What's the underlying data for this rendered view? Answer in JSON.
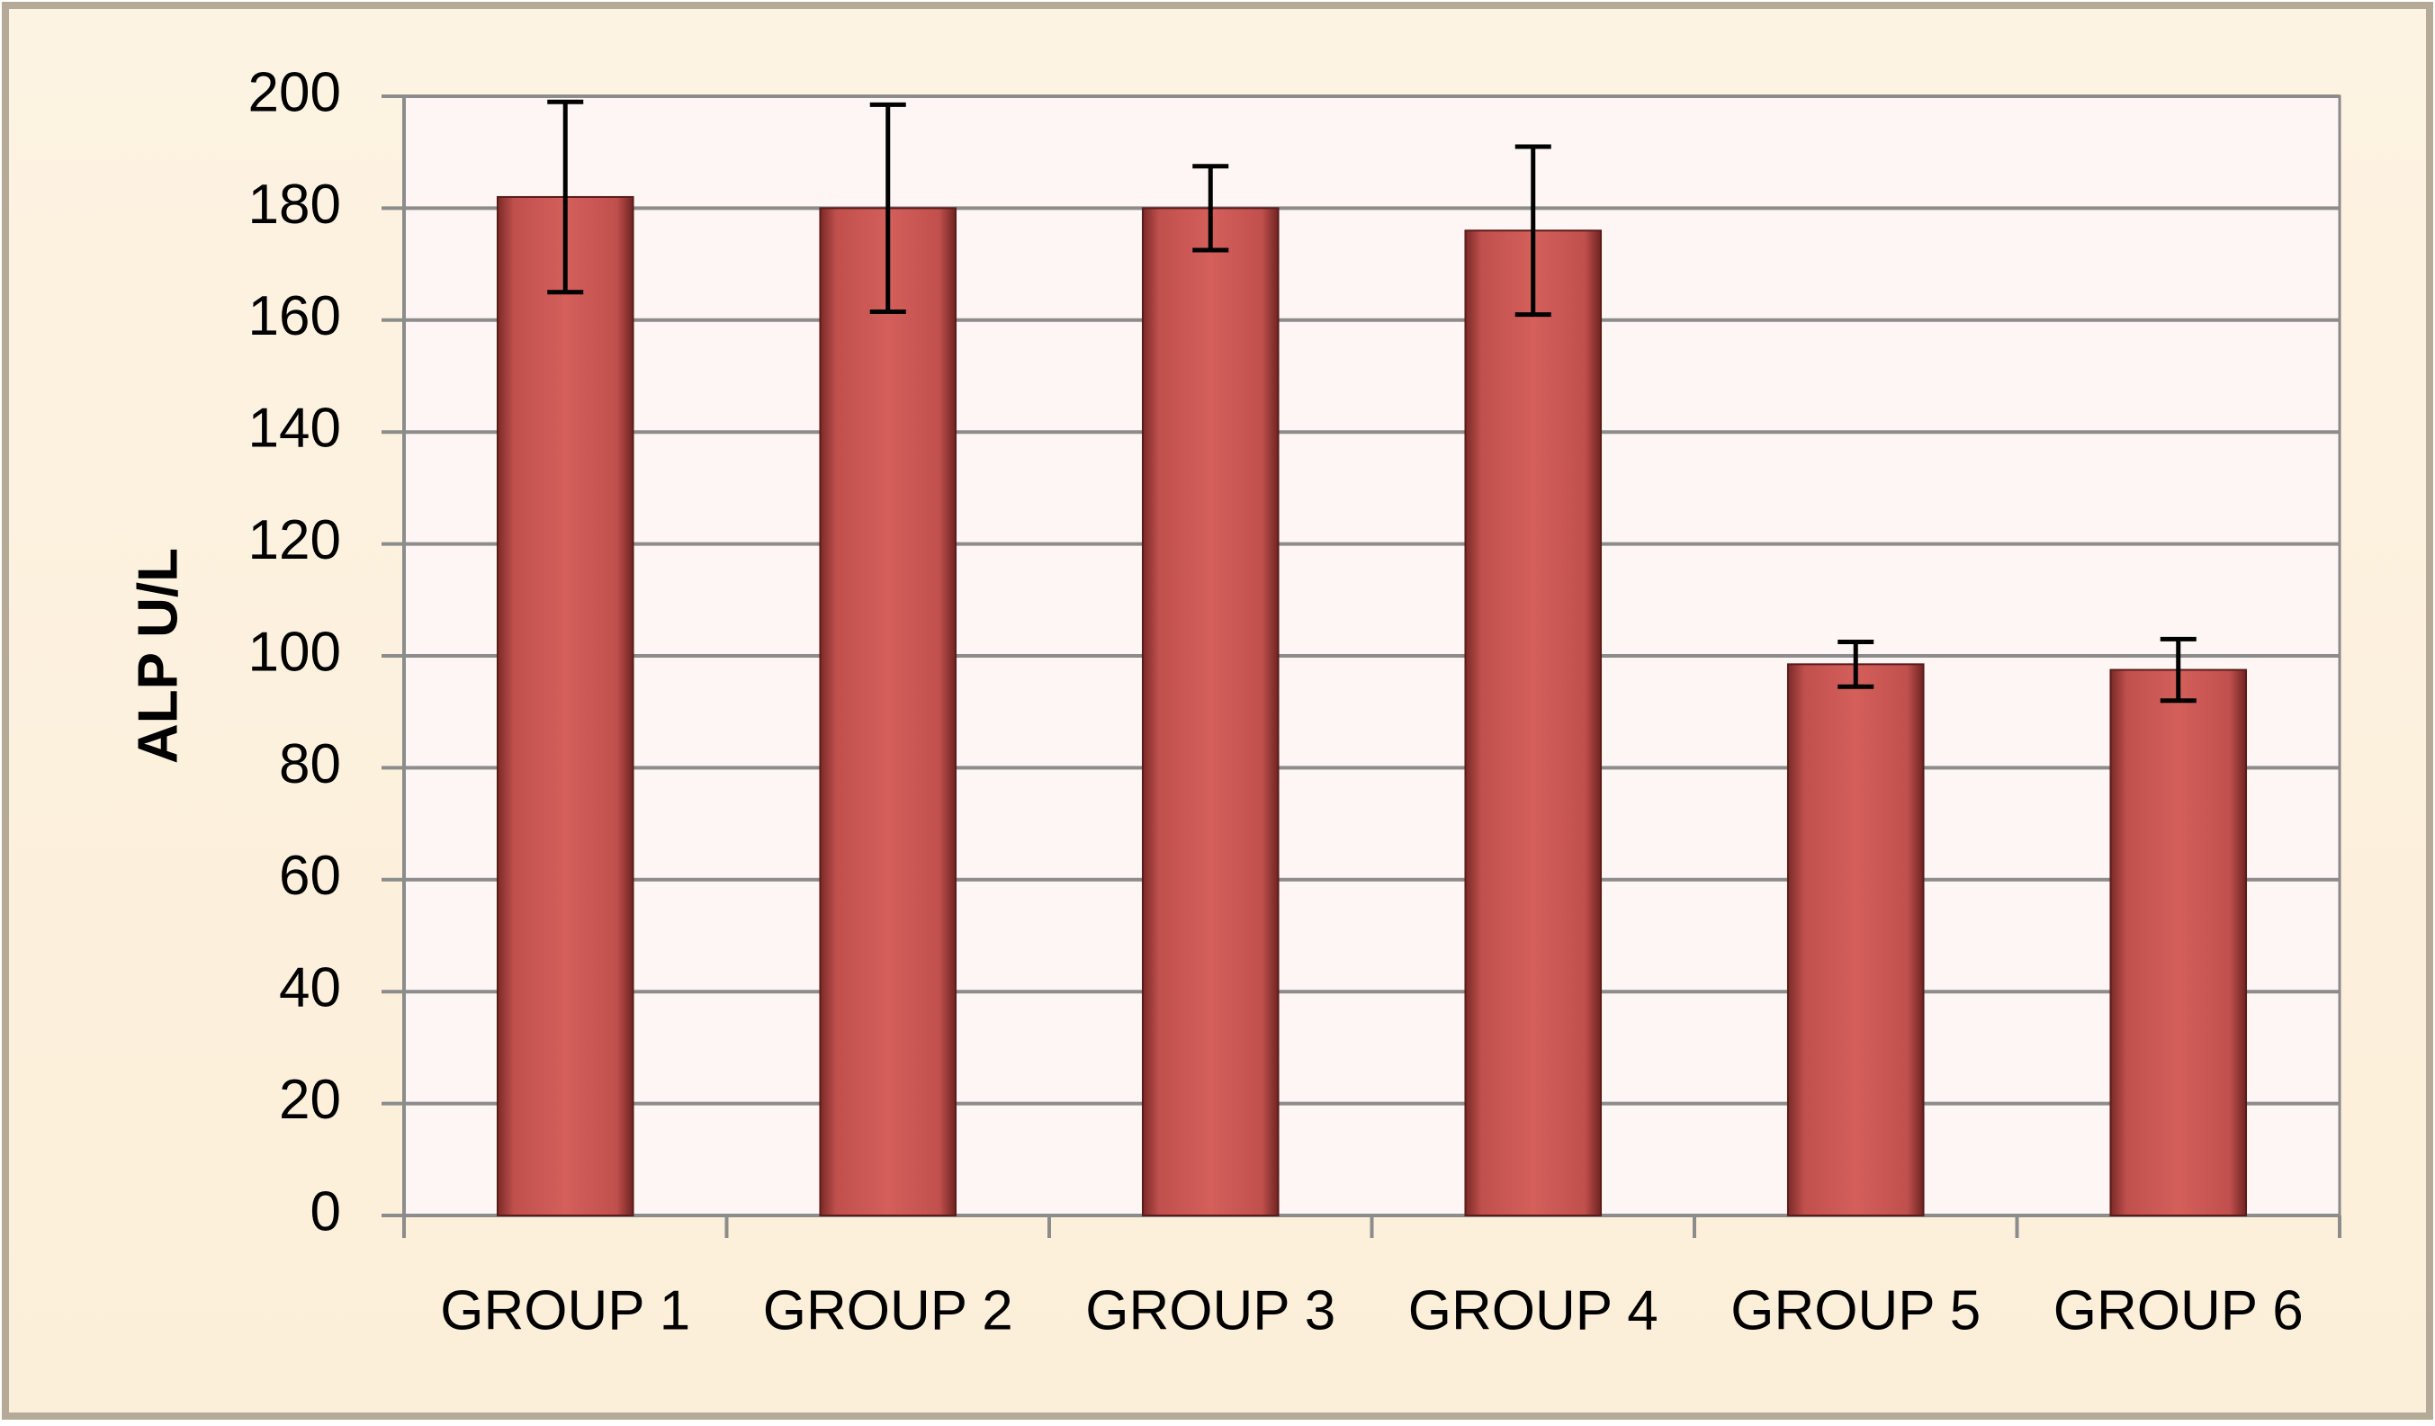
{
  "chart_data": {
    "type": "bar",
    "y_label": "ALP U/L",
    "categories": [
      "GROUP 1",
      "GROUP 2",
      "GROUP 3",
      "GROUP 4",
      "GROUP 5",
      "GROUP 6"
    ],
    "values": [
      182,
      180,
      180,
      176,
      98.5,
      97.5
    ],
    "errors": [
      17,
      18.5,
      7.5,
      15,
      4,
      5.5
    ],
    "color": "#c0504d",
    "ylim": [
      0,
      200
    ],
    "yticks": [
      0,
      20,
      40,
      60,
      80,
      100,
      120,
      140,
      160,
      180,
      200
    ],
    "grid": true
  }
}
